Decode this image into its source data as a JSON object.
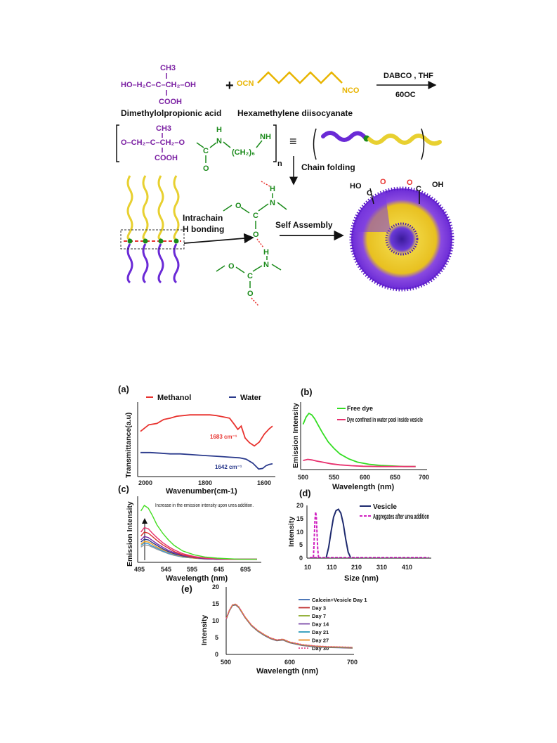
{
  "scheme": {
    "reactant1_formula": {
      "ch3": "CH3",
      "main": "HO–H₂C–C–CH₂–OH",
      "cooh": "COOH",
      "plus": "+"
    },
    "reactant1_name": "Dimethylolpropionic acid",
    "reactant2_formula": {
      "left": "OCN",
      "right": "NCO"
    },
    "reactant2_name": "Hexamethylene diisocyanate",
    "conditions": {
      "top": "DABCO , THF",
      "bottom": "60OC"
    },
    "polymer": {
      "ch3": "CH3",
      "main": "O–CH₂–C–CH₂–O",
      "cooh": "COOH",
      "c": "C",
      "o": "O",
      "h1": "H",
      "n1": "N",
      "ch2n": "(CH₂)₆",
      "nh": "NH",
      "n": "n",
      "equiv": "≡"
    },
    "step_chain_folding": "Chain folding",
    "step_h_bonding": [
      "Intrachain",
      "H bonding"
    ],
    "step_self_assembly": "Self Assembly",
    "hbond": {
      "h": "H",
      "n": "N",
      "o": "O",
      "c": "C"
    },
    "vesicle_groups": {
      "left": "HO",
      "right": "OH",
      "c": "C",
      "o": "O"
    },
    "colors": {
      "purple": "#7a1fa2",
      "gold": "#e8b400",
      "green": "#1a8a1a",
      "violet": "#6a2ad6",
      "yellow": "#f2e04a"
    }
  },
  "chart_data": [
    {
      "panel": "(a)",
      "type": "line",
      "ylabel": "Transmittance(a.u)",
      "xlabel": "Wavenumber(cm-1)",
      "xlim": [
        2000,
        1600
      ],
      "xticks": [
        "2000",
        "1800",
        "1600"
      ],
      "series": [
        {
          "name": "Methanol",
          "color": "#e8322e",
          "x": [
            2000,
            1975,
            1950,
            1930,
            1910,
            1890,
            1870,
            1850,
            1830,
            1810,
            1790,
            1770,
            1750,
            1730,
            1715,
            1705,
            1695,
            1683,
            1670,
            1655,
            1640,
            1625,
            1610,
            1600
          ],
          "y": [
            0.62,
            0.72,
            0.74,
            0.8,
            0.82,
            0.85,
            0.86,
            0.87,
            0.87,
            0.87,
            0.87,
            0.86,
            0.84,
            0.82,
            0.72,
            0.65,
            0.7,
            0.52,
            0.45,
            0.4,
            0.46,
            0.58,
            0.66,
            0.7
          ]
        },
        {
          "name": "Water",
          "color": "#2a3a8c",
          "x": [
            2000,
            1970,
            1940,
            1910,
            1880,
            1850,
            1820,
            1790,
            1760,
            1730,
            1700,
            1680,
            1660,
            1642,
            1630,
            1620,
            1610,
            1600
          ],
          "y": [
            0.3,
            0.3,
            0.29,
            0.28,
            0.28,
            0.27,
            0.26,
            0.25,
            0.24,
            0.23,
            0.22,
            0.2,
            0.14,
            0.05,
            0.06,
            0.1,
            0.12,
            0.13
          ]
        }
      ],
      "annotations": [
        {
          "text": "1683 cm⁻¹",
          "color": "#e8322e"
        },
        {
          "text": "1642 cm⁻¹",
          "color": "#2a3a8c"
        }
      ]
    },
    {
      "panel": "(b)",
      "type": "line",
      "ylabel": "Emission Intensity",
      "xlabel": "Wavelength (nm)",
      "xlim": [
        500,
        700
      ],
      "xticks": [
        "500",
        "550",
        "600",
        "650",
        "700"
      ],
      "series": [
        {
          "name": "Free dye",
          "color": "#33dd22",
          "x": [
            497,
            502,
            507,
            512,
            517,
            522,
            530,
            540,
            550,
            560,
            575,
            590,
            610,
            630,
            650,
            670,
            690
          ],
          "y": [
            0.8,
            0.93,
            1.0,
            0.97,
            0.9,
            0.8,
            0.65,
            0.48,
            0.36,
            0.26,
            0.17,
            0.11,
            0.07,
            0.05,
            0.04,
            0.03,
            0.03
          ]
        },
        {
          "name": "Dye confined in water pool inside vesicle",
          "color": "#e8306e",
          "x": [
            497,
            505,
            512,
            520,
            530,
            545,
            560,
            580,
            600,
            630,
            660,
            690
          ],
          "y": [
            0.14,
            0.16,
            0.15,
            0.13,
            0.11,
            0.08,
            0.06,
            0.045,
            0.035,
            0.03,
            0.03,
            0.03
          ]
        }
      ]
    },
    {
      "panel": "(c)",
      "type": "line",
      "ylabel": "Emission Intensity",
      "xlabel": "Wavelength (nm)",
      "xticks": [
        "495",
        "545",
        "595",
        "645",
        "695"
      ],
      "note": "Increase in the emission intensity upon urea addition.",
      "x": [
        497,
        503,
        510,
        517,
        525,
        535,
        545,
        555,
        570,
        590,
        610,
        630,
        650,
        670,
        690,
        700
      ],
      "series": [
        {
          "color": "#44dd22",
          "y": [
            0.9,
            1.0,
            0.95,
            0.82,
            0.65,
            0.5,
            0.38,
            0.28,
            0.18,
            0.11,
            0.07,
            0.05,
            0.04,
            0.03,
            0.03,
            0.03
          ]
        },
        {
          "color": "#e8306e",
          "y": [
            0.52,
            0.6,
            0.58,
            0.5,
            0.42,
            0.33,
            0.26,
            0.2,
            0.13,
            0.08,
            0.05,
            0.04,
            0.03,
            0.03,
            0.03,
            0.03
          ]
        },
        {
          "color": "#d83030",
          "y": [
            0.45,
            0.52,
            0.5,
            0.44,
            0.37,
            0.29,
            0.23,
            0.17,
            0.11,
            0.07,
            0.05,
            0.04,
            0.03,
            0.03,
            0.03,
            0.03
          ]
        },
        {
          "color": "#7a2aa8",
          "y": [
            0.38,
            0.44,
            0.42,
            0.37,
            0.31,
            0.25,
            0.19,
            0.15,
            0.1,
            0.06,
            0.04,
            0.03,
            0.03,
            0.03,
            0.03,
            0.03
          ]
        },
        {
          "color": "#2a3a8c",
          "y": [
            0.34,
            0.39,
            0.38,
            0.33,
            0.28,
            0.22,
            0.17,
            0.13,
            0.09,
            0.06,
            0.04,
            0.03,
            0.03,
            0.03,
            0.03,
            0.03
          ]
        },
        {
          "color": "#f0a020",
          "y": [
            0.3,
            0.35,
            0.34,
            0.3,
            0.25,
            0.2,
            0.16,
            0.12,
            0.08,
            0.05,
            0.04,
            0.03,
            0.03,
            0.03,
            0.03,
            0.03
          ]
        },
        {
          "color": "#3a9ad8",
          "y": [
            0.28,
            0.32,
            0.31,
            0.27,
            0.23,
            0.18,
            0.14,
            0.11,
            0.07,
            0.05,
            0.04,
            0.03,
            0.03,
            0.03,
            0.03,
            0.03
          ]
        },
        {
          "color": "#999999",
          "y": [
            0.25,
            0.29,
            0.28,
            0.25,
            0.21,
            0.17,
            0.13,
            0.1,
            0.07,
            0.05,
            0.03,
            0.03,
            0.03,
            0.03,
            0.03,
            0.03
          ]
        }
      ]
    },
    {
      "panel": "(d)",
      "type": "line",
      "ylabel": "Intensity",
      "xlabel": "Size (nm)",
      "xlim": [
        10,
        510
      ],
      "ylim": [
        0,
        20
      ],
      "xticks": [
        "10",
        "110",
        "210",
        "310",
        "410"
      ],
      "yticks": [
        "0",
        "5",
        "10",
        "15",
        "20"
      ],
      "series": [
        {
          "name": "Vesicle",
          "color": "#1e2a6e",
          "x": [
            78,
            88,
            98,
            108,
            118,
            128,
            138,
            148,
            158,
            168,
            178
          ],
          "y": [
            0,
            4,
            10,
            15.5,
            18,
            18.5,
            17,
            13,
            7,
            2,
            0
          ]
        },
        {
          "name": "Aggregates after urea addition",
          "color": "#d020c0",
          "x": [
            25,
            28,
            31,
            34,
            37,
            40,
            43,
            46
          ],
          "y": [
            0,
            6,
            14,
            17.5,
            16,
            9,
            3,
            0
          ]
        }
      ]
    },
    {
      "panel": "(e)",
      "type": "line",
      "ylabel": "Intensity",
      "xlabel": "Wavelength (nm)",
      "xlim": [
        500,
        700
      ],
      "ylim": [
        0,
        20
      ],
      "xticks": [
        "500",
        "600",
        "700"
      ],
      "yticks": [
        "0",
        "5",
        "10",
        "15",
        "20"
      ],
      "x": [
        500,
        505,
        510,
        515,
        520,
        525,
        530,
        540,
        550,
        560,
        570,
        580,
        590,
        600,
        620,
        640,
        660,
        680,
        700
      ],
      "y": [
        10.5,
        13.0,
        14.6,
        14.8,
        14.0,
        12.5,
        11.0,
        8.6,
        7.0,
        5.8,
        4.8,
        4.2,
        4.4,
        3.6,
        2.8,
        2.4,
        2.2,
        2.1,
        2.0
      ],
      "series": [
        {
          "name": "Calcein+Vesicle Day 1",
          "color": "#3a6ab0"
        },
        {
          "name": "Day 3",
          "color": "#c03030"
        },
        {
          "name": "Day 7",
          "color": "#8aaa2a"
        },
        {
          "name": "Day 14",
          "color": "#7a4aa8"
        },
        {
          "name": "Day 21",
          "color": "#2a9aba"
        },
        {
          "name": "Day 27",
          "color": "#e88a20"
        },
        {
          "name": "Day 30",
          "color": "#e04a8a"
        }
      ]
    }
  ]
}
